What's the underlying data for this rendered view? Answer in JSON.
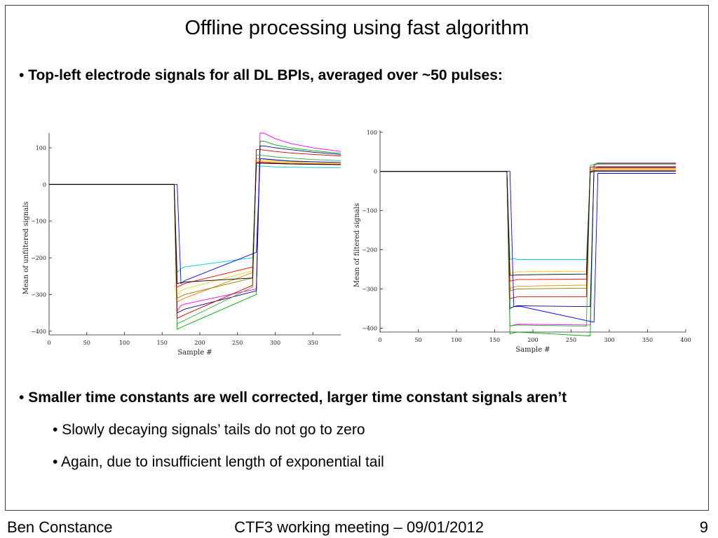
{
  "slide": {
    "title": "Offline processing using fast algorithm",
    "bullet1": "Top-left electrode signals for all DL BPIs, averaged over ~50 pulses:",
    "bullet2": "Smaller time constants are well corrected, larger time constant signals aren’t",
    "sub1": "Slowly decaying signals’ tails do not go to zero",
    "sub2": "Again, due to insufficient length of exponential tail",
    "bullet_glyph": "•"
  },
  "footer": {
    "author": "Ben Constance",
    "meeting": "CTF3 working meeting – 09/01/2012",
    "page": "9"
  },
  "colors": [
    "#ff00ff",
    "#00aa00",
    "#000080",
    "#00cccc",
    "#ff8000",
    "#ff0000",
    "#808000",
    "#ffcc00",
    "#0000ff",
    "#33aa33",
    "#000000",
    "#cc0000"
  ],
  "chart_data": [
    {
      "type": "line",
      "title": "",
      "xlabel": "Sample #",
      "ylabel": "Mean of unfiltered signals",
      "xlim": [
        0,
        387
      ],
      "ylim": [
        -410,
        140
      ],
      "xticks": [
        0,
        50,
        100,
        150,
        200,
        250,
        300,
        350
      ],
      "yticks": [
        -400,
        -300,
        -200,
        -100,
        0,
        100
      ],
      "grid": false,
      "series": [
        {
          "color": "#ff00ff",
          "x": [
            0,
            160,
            166,
            170,
            175,
            180,
            275,
            280,
            285,
            300,
            320,
            350,
            387
          ],
          "y": [
            0,
            0,
            0,
            -345,
            -330,
            -326,
            -285,
            140,
            140,
            125,
            112,
            100,
            90
          ]
        },
        {
          "color": "#00aa00",
          "x": [
            0,
            160,
            166,
            170,
            175,
            180,
            275,
            280,
            285,
            300,
            320,
            350,
            387
          ],
          "y": [
            0,
            0,
            0,
            -395,
            -390,
            -385,
            -300,
            118,
            118,
            108,
            100,
            92,
            85
          ]
        },
        {
          "color": "#000080",
          "x": [
            0,
            160,
            166,
            170,
            175,
            180,
            275,
            280,
            285,
            300,
            320,
            350,
            387
          ],
          "y": [
            0,
            0,
            0,
            -350,
            -345,
            -340,
            -290,
            105,
            105,
            100,
            95,
            88,
            82
          ]
        },
        {
          "color": "#00cccc",
          "x": [
            0,
            160,
            166,
            170,
            175,
            180,
            270,
            275,
            280,
            300,
            320,
            350,
            387
          ],
          "y": [
            0,
            0,
            0,
            -240,
            -230,
            -225,
            -200,
            50,
            50,
            48,
            47,
            46,
            45
          ]
        },
        {
          "color": "#ff8000",
          "x": [
            0,
            160,
            166,
            170,
            175,
            180,
            270,
            275,
            280,
            300,
            320,
            350,
            387
          ],
          "y": [
            0,
            0,
            0,
            -320,
            -315,
            -310,
            -240,
            62,
            62,
            60,
            58,
            57,
            55
          ]
        },
        {
          "color": "#ff0000",
          "x": [
            0,
            160,
            166,
            170,
            175,
            180,
            270,
            275,
            280,
            300,
            320,
            350,
            387
          ],
          "y": [
            0,
            0,
            0,
            -280,
            -275,
            -270,
            -225,
            60,
            60,
            58,
            56,
            55,
            54
          ]
        },
        {
          "color": "#808000",
          "x": [
            0,
            160,
            166,
            170,
            175,
            180,
            270,
            275,
            280,
            300,
            320,
            350,
            387
          ],
          "y": [
            0,
            0,
            0,
            -310,
            -305,
            -300,
            -255,
            70,
            70,
            66,
            63,
            60,
            58
          ]
        },
        {
          "color": "#ffcc00",
          "x": [
            0,
            160,
            166,
            170,
            175,
            180,
            270,
            275,
            280,
            300,
            320,
            350,
            387
          ],
          "y": [
            0,
            0,
            0,
            -300,
            -290,
            -285,
            -235,
            65,
            65,
            63,
            61,
            60,
            58
          ]
        },
        {
          "color": "#0000ff",
          "x": [
            0,
            160,
            170,
            175,
            180,
            185,
            275,
            280,
            285,
            300,
            320,
            350,
            387
          ],
          "y": [
            0,
            0,
            0,
            -270,
            -262,
            -258,
            -185,
            70,
            70,
            67,
            64,
            62,
            60
          ]
        },
        {
          "color": "#33aa33",
          "x": [
            0,
            160,
            166,
            170,
            175,
            180,
            270,
            275,
            280,
            300,
            320,
            350,
            387
          ],
          "y": [
            0,
            0,
            0,
            -380,
            -375,
            -370,
            -280,
            80,
            80,
            75,
            72,
            68,
            65
          ]
        },
        {
          "color": "#cc0000",
          "x": [
            0,
            160,
            166,
            170,
            175,
            180,
            270,
            275,
            280,
            300,
            320,
            350,
            387
          ],
          "y": [
            0,
            0,
            0,
            -365,
            -360,
            -355,
            -275,
            95,
            95,
            90,
            86,
            82,
            78
          ]
        },
        {
          "color": "#000000",
          "x": [
            0,
            160,
            166,
            170,
            175,
            180,
            270,
            275,
            280,
            300,
            320,
            350,
            387
          ],
          "y": [
            0,
            0,
            0,
            -270,
            -268,
            -266,
            -255,
            58,
            58,
            57,
            56,
            55,
            54
          ]
        }
      ]
    },
    {
      "type": "line",
      "title": "",
      "xlabel": "Sample #",
      "ylabel": "Mean of filtered signals",
      "xlim": [
        0,
        400
      ],
      "ylim": [
        -410,
        105
      ],
      "xticks": [
        0,
        50,
        100,
        150,
        200,
        250,
        300,
        350,
        400
      ],
      "yticks": [
        -400,
        -300,
        -200,
        -100,
        0,
        100
      ],
      "grid": false,
      "series": [
        {
          "color": "#ff00ff",
          "x": [
            0,
            160,
            166,
            170,
            175,
            180,
            275,
            280,
            285,
            300,
            330,
            360,
            387
          ],
          "y": [
            0,
            0,
            0,
            -395,
            -392,
            -390,
            -392,
            15,
            20,
            20,
            20,
            20,
            20
          ]
        },
        {
          "color": "#00aa00",
          "x": [
            0,
            160,
            166,
            170,
            175,
            180,
            275,
            280,
            285,
            300,
            330,
            360,
            387
          ],
          "y": [
            0,
            0,
            0,
            -415,
            -412,
            -410,
            -420,
            18,
            22,
            22,
            22,
            22,
            22
          ]
        },
        {
          "color": "#000080",
          "x": [
            0,
            160,
            166,
            170,
            175,
            180,
            275,
            280,
            285,
            300,
            330,
            360,
            387
          ],
          "y": [
            0,
            0,
            0,
            -350,
            -345,
            -343,
            -345,
            8,
            10,
            10,
            10,
            10,
            10
          ]
        },
        {
          "color": "#00cccc",
          "x": [
            0,
            160,
            166,
            170,
            175,
            180,
            270,
            275,
            280,
            300,
            330,
            360,
            387
          ],
          "y": [
            0,
            0,
            0,
            -225,
            -222,
            -225,
            -225,
            0,
            5,
            5,
            5,
            5,
            5
          ]
        },
        {
          "color": "#ff8000",
          "x": [
            0,
            160,
            166,
            170,
            175,
            180,
            270,
            275,
            280,
            300,
            330,
            360,
            387
          ],
          "y": [
            0,
            0,
            0,
            -300,
            -295,
            -293,
            -290,
            5,
            8,
            8,
            8,
            8,
            8
          ]
        },
        {
          "color": "#ff0000",
          "x": [
            0,
            160,
            166,
            170,
            175,
            180,
            270,
            275,
            280,
            300,
            330,
            360,
            387
          ],
          "y": [
            0,
            0,
            0,
            -280,
            -278,
            -276,
            -275,
            0,
            2,
            2,
            2,
            2,
            2
          ]
        },
        {
          "color": "#808000",
          "x": [
            0,
            160,
            166,
            170,
            175,
            180,
            270,
            275,
            280,
            300,
            330,
            360,
            387
          ],
          "y": [
            0,
            0,
            0,
            -305,
            -302,
            -300,
            -298,
            10,
            12,
            12,
            12,
            12,
            12
          ]
        },
        {
          "color": "#ffcc00",
          "x": [
            0,
            160,
            166,
            170,
            175,
            180,
            270,
            275,
            280,
            300,
            330,
            360,
            387
          ],
          "y": [
            0,
            0,
            0,
            -260,
            -258,
            -256,
            -255,
            5,
            6,
            6,
            6,
            6,
            6
          ]
        },
        {
          "color": "#0000ff",
          "x": [
            0,
            160,
            170,
            175,
            180,
            185,
            280,
            285,
            290,
            300,
            330,
            360,
            387
          ],
          "y": [
            0,
            0,
            0,
            -345,
            -345,
            -345,
            -385,
            -5,
            -5,
            -5,
            -5,
            -5,
            -5
          ]
        },
        {
          "color": "#33aa33",
          "x": [
            0,
            160,
            166,
            170,
            175,
            180,
            270,
            275,
            280,
            300,
            330,
            360,
            387
          ],
          "y": [
            0,
            0,
            0,
            -395,
            -393,
            -392,
            -395,
            15,
            18,
            18,
            18,
            18,
            18
          ]
        },
        {
          "color": "#cc0000",
          "x": [
            0,
            160,
            166,
            170,
            175,
            180,
            270,
            275,
            280,
            300,
            330,
            360,
            387
          ],
          "y": [
            0,
            0,
            0,
            -325,
            -322,
            -320,
            -320,
            10,
            12,
            12,
            12,
            12,
            12
          ]
        },
        {
          "color": "#000000",
          "x": [
            0,
            160,
            166,
            170,
            175,
            180,
            270,
            275,
            280,
            300,
            330,
            360,
            387
          ],
          "y": [
            0,
            0,
            0,
            -265,
            -265,
            -264,
            -262,
            -2,
            0,
            0,
            0,
            0,
            0
          ]
        }
      ]
    }
  ]
}
